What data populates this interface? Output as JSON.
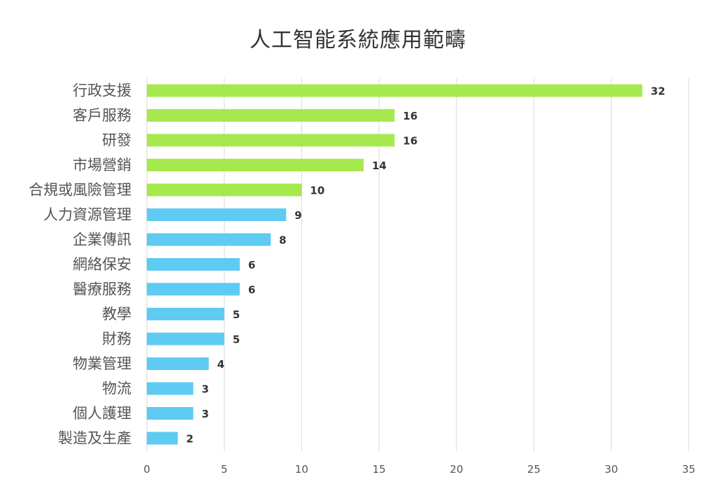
{
  "chart_data": {
    "type": "bar",
    "orientation": "horizontal",
    "title": "人工智能系統應用範疇",
    "categories": [
      "行政支援",
      "客戶服務",
      "研發",
      "市場營銷",
      "合規或風險管理",
      "人力資源管理",
      "企業傳訊",
      "網絡保安",
      "醫療服務",
      "教學",
      "財務",
      "物業管理",
      "物流",
      "個人護理",
      "製造及生產"
    ],
    "values": [
      32,
      16,
      16,
      14,
      10,
      9,
      8,
      6,
      6,
      5,
      5,
      4,
      3,
      3,
      2
    ],
    "bar_colors": [
      "#a5e94e",
      "#a5e94e",
      "#a5e94e",
      "#a5e94e",
      "#a5e94e",
      "#5ecbf2",
      "#5ecbf2",
      "#5ecbf2",
      "#5ecbf2",
      "#5ecbf2",
      "#5ecbf2",
      "#5ecbf2",
      "#5ecbf2",
      "#5ecbf2",
      "#5ecbf2"
    ],
    "xlim": [
      0,
      35
    ],
    "x_ticks": [
      0,
      5,
      10,
      15,
      20,
      25,
      30,
      35
    ],
    "grid": "vertical",
    "data_labels": true
  }
}
